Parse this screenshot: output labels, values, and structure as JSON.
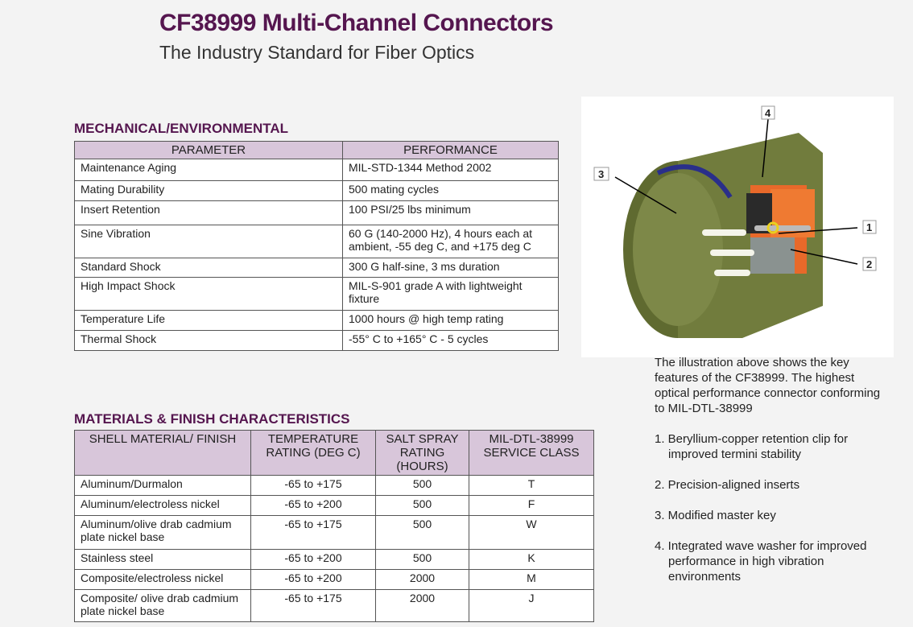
{
  "header": {
    "title": "CF38999 Multi-Channel Connectors",
    "subtitle": "The Industry Standard for Fiber Optics"
  },
  "mechanical": {
    "title": "MECHANICAL/ENVIRONMENTAL",
    "columns": [
      "PARAMETER",
      "PERFORMANCE"
    ],
    "rows": [
      [
        "Maintenance Aging",
        "MIL-STD-1344 Method 2002"
      ],
      [
        "Mating Durability",
        "500 mating cycles"
      ],
      [
        "Insert Retention",
        "100 PSI/25 lbs minimum"
      ],
      [
        "Sine Vibration",
        "60 G (140-2000 Hz), 4 hours each at ambient, -55 deg C, and +175 deg C"
      ],
      [
        "Standard Shock",
        "300 G half-sine, 3 ms duration"
      ],
      [
        "High Impact Shock",
        "MIL-S-901 grade A with lightweight fixture"
      ],
      [
        "Temperature Life",
        "1000 hours @ high temp rating"
      ],
      [
        "Thermal Shock",
        "-55° C to +165° C - 5 cycles"
      ]
    ]
  },
  "materials": {
    "title": "MATERIALS & FINISH CHARACTERISTICS",
    "columns": [
      "SHELL MATERIAL/ FINISH",
      "TEMPERATURE RATING (DEG C)",
      "SALT SPRAY RATING (HOURS)",
      "MIL-DTL-38999 SERVICE CLASS"
    ],
    "rows": [
      [
        "Aluminum/Durmalon",
        "-65 to +175",
        "500",
        "T"
      ],
      [
        "Aluminum/electroless nickel",
        "-65 to +200",
        "500",
        "F"
      ],
      [
        "Aluminum/olive drab cadmium plate nickel base",
        "-65 to +175",
        "500",
        "W"
      ],
      [
        "Stainless steel",
        "-65 to +200",
        "500",
        "K"
      ],
      [
        "Composite/electroless nickel",
        "-65 to +200",
        "2000",
        "M"
      ],
      [
        "Composite/ olive drab cadmium plate nickel base",
        "-65 to +175",
        "2000",
        "J"
      ]
    ]
  },
  "illustration": {
    "callouts": [
      "1",
      "2",
      "3",
      "4"
    ],
    "colors": {
      "shell": "#6f7a3a",
      "insert": "#e8692a",
      "band": "#2a2f8a"
    }
  },
  "description": {
    "intro": "The illustration above shows the key features of the CF38999. The highest optical performance connector conforming to MIL-DTL-38999",
    "features": [
      "1. Beryllium-copper retention clip for improved termini stability",
      "2. Precision-aligned inserts",
      "3. Modified master key",
      "4. Integrated wave washer for improved performance in high vibration environments"
    ]
  }
}
